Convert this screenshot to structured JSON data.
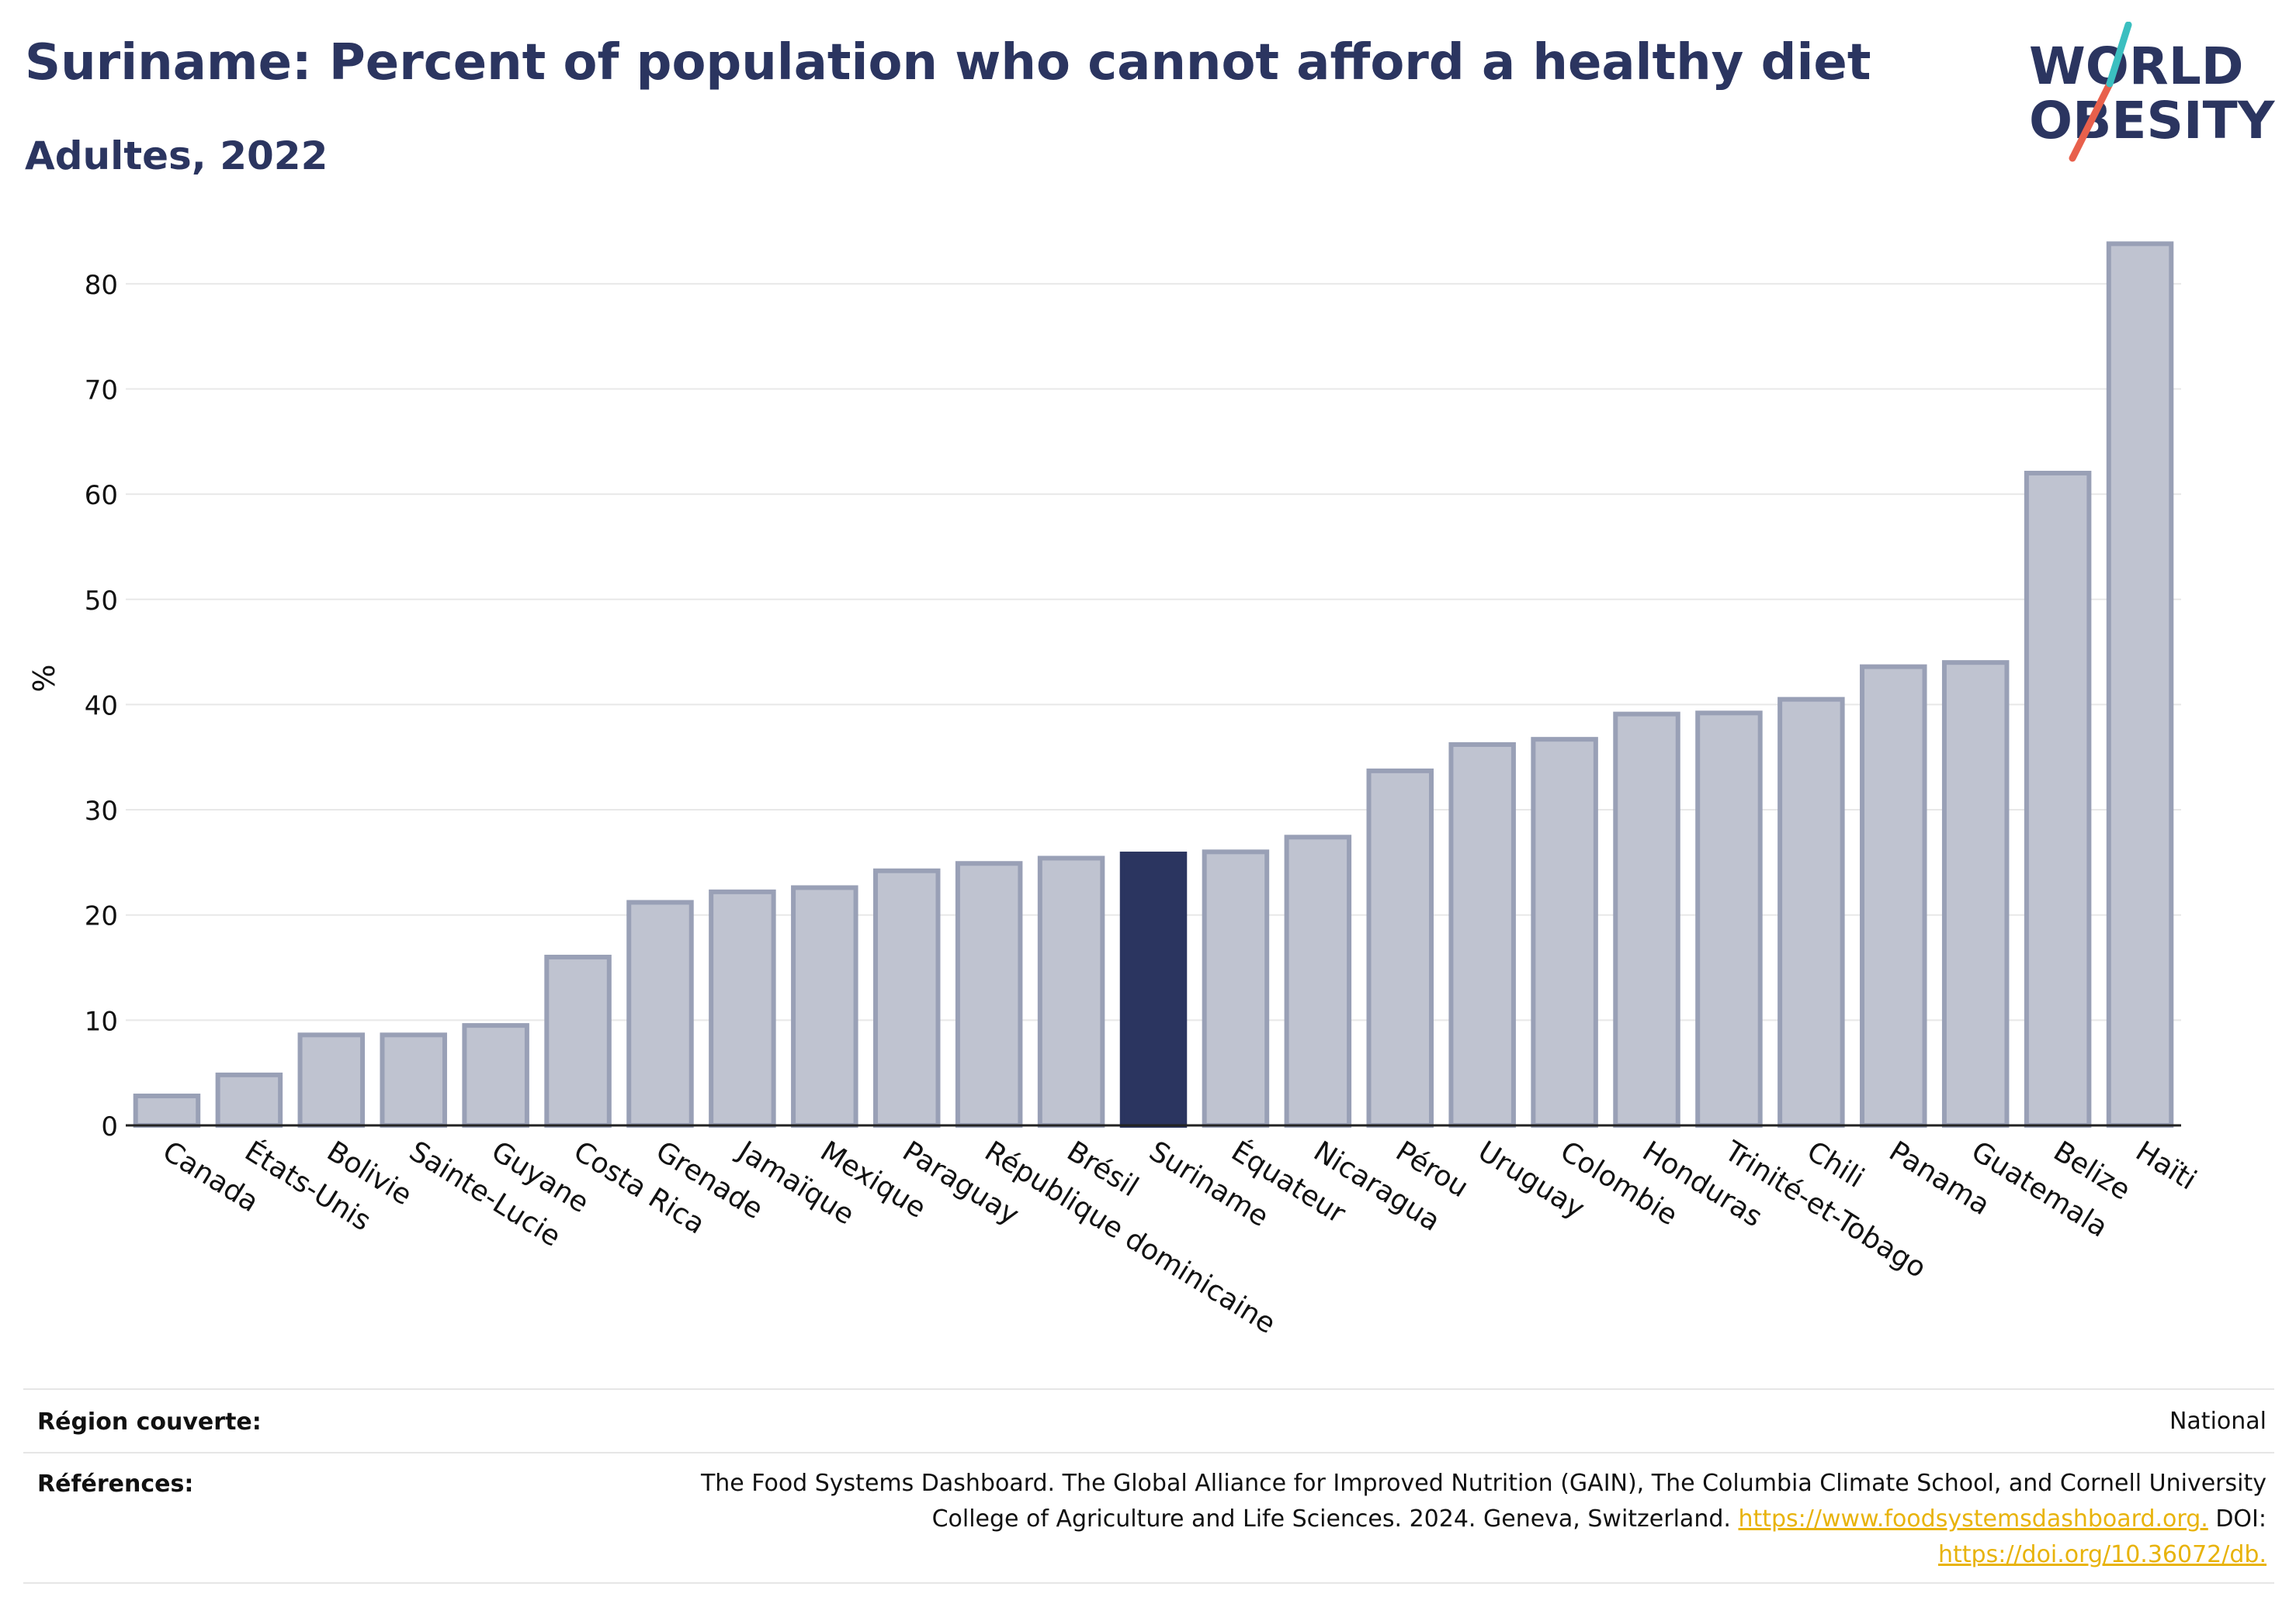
{
  "header": {
    "title": "Suriname: Percent of population who cannot afford a healthy diet",
    "subtitle": "Adultes, 2022"
  },
  "logo": {
    "line1": "WORLD",
    "line2": "OBESITY"
  },
  "chart_data": {
    "type": "bar",
    "categories": [
      "Canada",
      "États-Unis",
      "Bolivie",
      "Sainte-Lucie",
      "Guyane",
      "Costa Rica",
      "Grenade",
      "Jamaïque",
      "Mexique",
      "Paraguay",
      "République dominicaine",
      "Brésil",
      "Suriname",
      "Équateur",
      "Nicaragua",
      "Pérou",
      "Uruguay",
      "Colombie",
      "Honduras",
      "Trinité-et-Tobago",
      "Chili",
      "Panama",
      "Guatemala",
      "Belize",
      "Haïti"
    ],
    "values": [
      2.8,
      4.8,
      8.6,
      8.6,
      9.5,
      16.0,
      21.2,
      22.2,
      22.6,
      24.2,
      24.9,
      25.4,
      25.8,
      26.0,
      27.4,
      33.7,
      36.2,
      36.7,
      39.1,
      39.2,
      40.5,
      43.6,
      44.0,
      62.0,
      83.8
    ],
    "highlight": "Suriname",
    "ylabel": "%",
    "ylim": [
      0,
      85
    ],
    "yticks": [
      0,
      10,
      20,
      30,
      40,
      50,
      60,
      70,
      80
    ],
    "grid": true,
    "colors": {
      "bar": "#bfc3d0",
      "bar_edge": "#99a0b6",
      "highlight": "#2b3560"
    }
  },
  "footer": {
    "region_label": "Région couverte:",
    "region_value": "National",
    "references_label": "Références:",
    "references_line1": "The Food Systems Dashboard. The Global Alliance for Improved Nutrition (GAIN), The Columbia Climate School, and Cornell University",
    "references_line2": "College of Agriculture and Life Sciences. 2024. Geneva, Switzerland.",
    "references_link1": "https://www.foodsystemsdashboard.org.",
    "references_doi_label": "DOI:",
    "references_link2": "https://doi.org/10.36072/db."
  }
}
